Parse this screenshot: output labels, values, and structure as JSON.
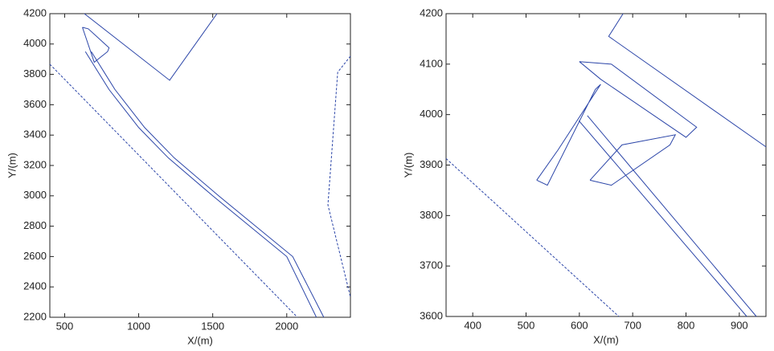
{
  "chart_data": [
    {
      "type": "line",
      "xlabel": "X/(m)",
      "ylabel": "Y/(m)",
      "xlim": [
        400,
        2430
      ],
      "ylim": [
        2200,
        4200
      ],
      "xticks": [
        500,
        1000,
        1500,
        2000
      ],
      "yticks": [
        2200,
        2400,
        2600,
        2800,
        3000,
        3200,
        3400,
        3600,
        3800,
        4000,
        4200
      ],
      "series": [
        {
          "color": "#2b45a8",
          "dash": false,
          "x": [
            633,
            1209,
            1529
          ],
          "values": [
            4200,
            3761,
            4200
          ]
        },
        {
          "color": "#2b45a8",
          "dash": true,
          "x": [
            400,
            2072
          ],
          "values": [
            3867,
            2200
          ]
        },
        {
          "color": "#2b45a8",
          "dash": true,
          "x": [
            2430,
            2344,
            2278,
            2430
          ],
          "values": [
            3920,
            3814,
            2940,
            2333
          ]
        },
        {
          "color": "#2b45a8",
          "dash": false,
          "x": [
            640,
            800,
            1000,
            1200,
            1500,
            2000,
            2200
          ],
          "values": [
            3950,
            3700,
            3450,
            3250,
            3000,
            2600,
            2200
          ]
        },
        {
          "color": "#2b45a8",
          "dash": false,
          "x": [
            680,
            840,
            1040,
            1240,
            1540,
            2040,
            2250
          ],
          "values": [
            3950,
            3700,
            3450,
            3250,
            3000,
            2600,
            2200
          ]
        },
        {
          "color": "#2b45a8",
          "dash": false,
          "x": [
            620,
            660,
            800,
            790,
            700,
            620
          ],
          "values": [
            4110,
            4100,
            3975,
            3950,
            3880,
            4110
          ]
        }
      ]
    },
    {
      "type": "line",
      "xlabel": "X/(m)",
      "ylabel": "Y/(m)",
      "xlim": [
        350,
        950
      ],
      "ylim": [
        3600,
        4200
      ],
      "xticks": [
        400,
        500,
        600,
        700,
        800,
        900
      ],
      "yticks": [
        3600,
        3700,
        3800,
        3900,
        4000,
        4100,
        4200
      ],
      "series": [
        {
          "color": "#2b45a8",
          "dash": false,
          "x": [
            682,
            655,
            950
          ],
          "values": [
            4200,
            4155,
            3936
          ]
        },
        {
          "color": "#2b45a8",
          "dash": true,
          "x": [
            350,
            674
          ],
          "values": [
            3913,
            3600
          ]
        },
        {
          "color": "#2b45a8",
          "dash": false,
          "x": [
            599,
            914
          ],
          "values": [
            3988,
            3600
          ]
        },
        {
          "color": "#2b45a8",
          "dash": false,
          "x": [
            615,
            932
          ],
          "values": [
            3998,
            3600
          ]
        },
        {
          "color": "#2b45a8",
          "dash": false,
          "x": [
            600,
            660,
            820,
            800,
            640,
            600
          ],
          "values": [
            4105,
            4100,
            3975,
            3955,
            4070,
            4105
          ]
        },
        {
          "color": "#2b45a8",
          "dash": false,
          "x": [
            520,
            560,
            640,
            630,
            540,
            520
          ],
          "values": [
            3870,
            3930,
            4060,
            4050,
            3860,
            3870
          ]
        },
        {
          "color": "#2b45a8",
          "dash": false,
          "x": [
            620,
            680,
            780,
            770,
            660,
            620
          ],
          "values": [
            3870,
            3940,
            3960,
            3940,
            3860,
            3870
          ]
        }
      ]
    }
  ]
}
